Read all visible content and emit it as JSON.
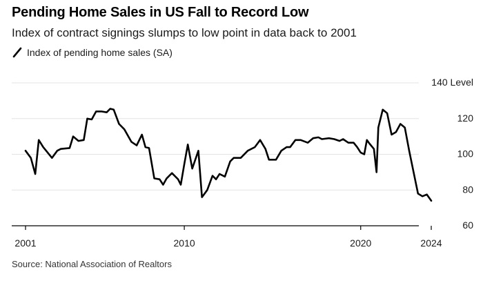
{
  "title": "Pending Home Sales in US Fall to Record Low",
  "subtitle": "Index of contract signings slumps to low point in data back to 2001",
  "source": "Source: National Association of Realtors",
  "colors": {
    "line": "#000000",
    "grid": "#e3e3e3",
    "axis": "#000000",
    "text": "#1a1a1a"
  },
  "chart_data": {
    "type": "line",
    "title": "Pending Home Sales in US Fall to Record Low",
    "subtitle": "Index of contract signings slumps to low point in data back to 2001",
    "xlabel": "",
    "ylabel": "Level",
    "ylim": [
      60,
      140
    ],
    "xlim": [
      2001,
      2024
    ],
    "grid": true,
    "y_ticks": [
      60,
      80,
      100,
      120,
      140
    ],
    "y_tick_labels": [
      "60",
      "80",
      "100",
      "120",
      "140 Level"
    ],
    "x_ticks": [
      2001,
      2010,
      2020,
      2024
    ],
    "x_tick_labels": [
      "2001",
      "2010",
      "2020",
      "2024"
    ],
    "legend": [
      "Index of pending home sales (SA)"
    ],
    "legend_position": "top-left",
    "series": [
      {
        "name": "Index of pending home sales (SA)",
        "x": [
          2001.0,
          2001.3,
          2001.55,
          2001.75,
          2002.0,
          2002.5,
          2002.8,
          2003.0,
          2003.5,
          2003.7,
          2004.0,
          2004.3,
          2004.5,
          2004.75,
          2005.0,
          2005.3,
          2005.6,
          2005.8,
          2006.0,
          2006.3,
          2006.6,
          2007.0,
          2007.3,
          2007.6,
          2007.8,
          2008.0,
          2008.3,
          2008.6,
          2008.8,
          2009.0,
          2009.3,
          2009.65,
          2009.8,
          2010.0,
          2010.2,
          2010.45,
          2010.8,
          2011.0,
          2011.3,
          2011.6,
          2011.8,
          2012.0,
          2012.3,
          2012.6,
          2012.8,
          2013.2,
          2013.6,
          2014.0,
          2014.3,
          2014.6,
          2014.8,
          2015.2,
          2015.5,
          2015.8,
          2016.0,
          2016.3,
          2016.6,
          2017.0,
          2017.3,
          2017.6,
          2017.8,
          2018.2,
          2018.5,
          2018.8,
          2019.0,
          2019.3,
          2019.6,
          2019.8,
          2020.0,
          2020.2,
          2020.35,
          2020.5,
          2020.75,
          2020.9,
          2021.0,
          2021.25,
          2021.5,
          2021.75,
          2022.0,
          2022.25,
          2022.5,
          2022.75,
          2023.0,
          2023.25,
          2023.5,
          2023.75,
          2024.0
        ],
        "values": [
          102,
          98,
          89,
          108,
          104,
          98,
          102,
          103,
          103.5,
          110,
          107.5,
          108,
          120,
          119.5,
          124,
          124,
          123.5,
          125.5,
          125,
          117,
          114,
          107,
          105,
          111,
          104,
          103.5,
          86.5,
          86,
          83,
          86.5,
          89.5,
          86,
          83,
          94.5,
          105.5,
          92,
          102,
          76,
          80,
          88,
          86,
          89,
          87.5,
          96,
          98,
          98,
          102,
          104,
          108,
          103,
          97,
          97,
          102,
          104,
          104,
          108,
          108,
          106.5,
          109,
          109.5,
          108.5,
          109,
          108.5,
          107.5,
          108.5,
          106.5,
          106.5,
          104,
          101,
          100,
          108,
          106,
          103,
          90,
          115,
          125,
          123,
          111,
          112.5,
          117,
          115,
          102,
          90,
          78,
          76.5,
          77.5,
          74
        ]
      }
    ]
  }
}
